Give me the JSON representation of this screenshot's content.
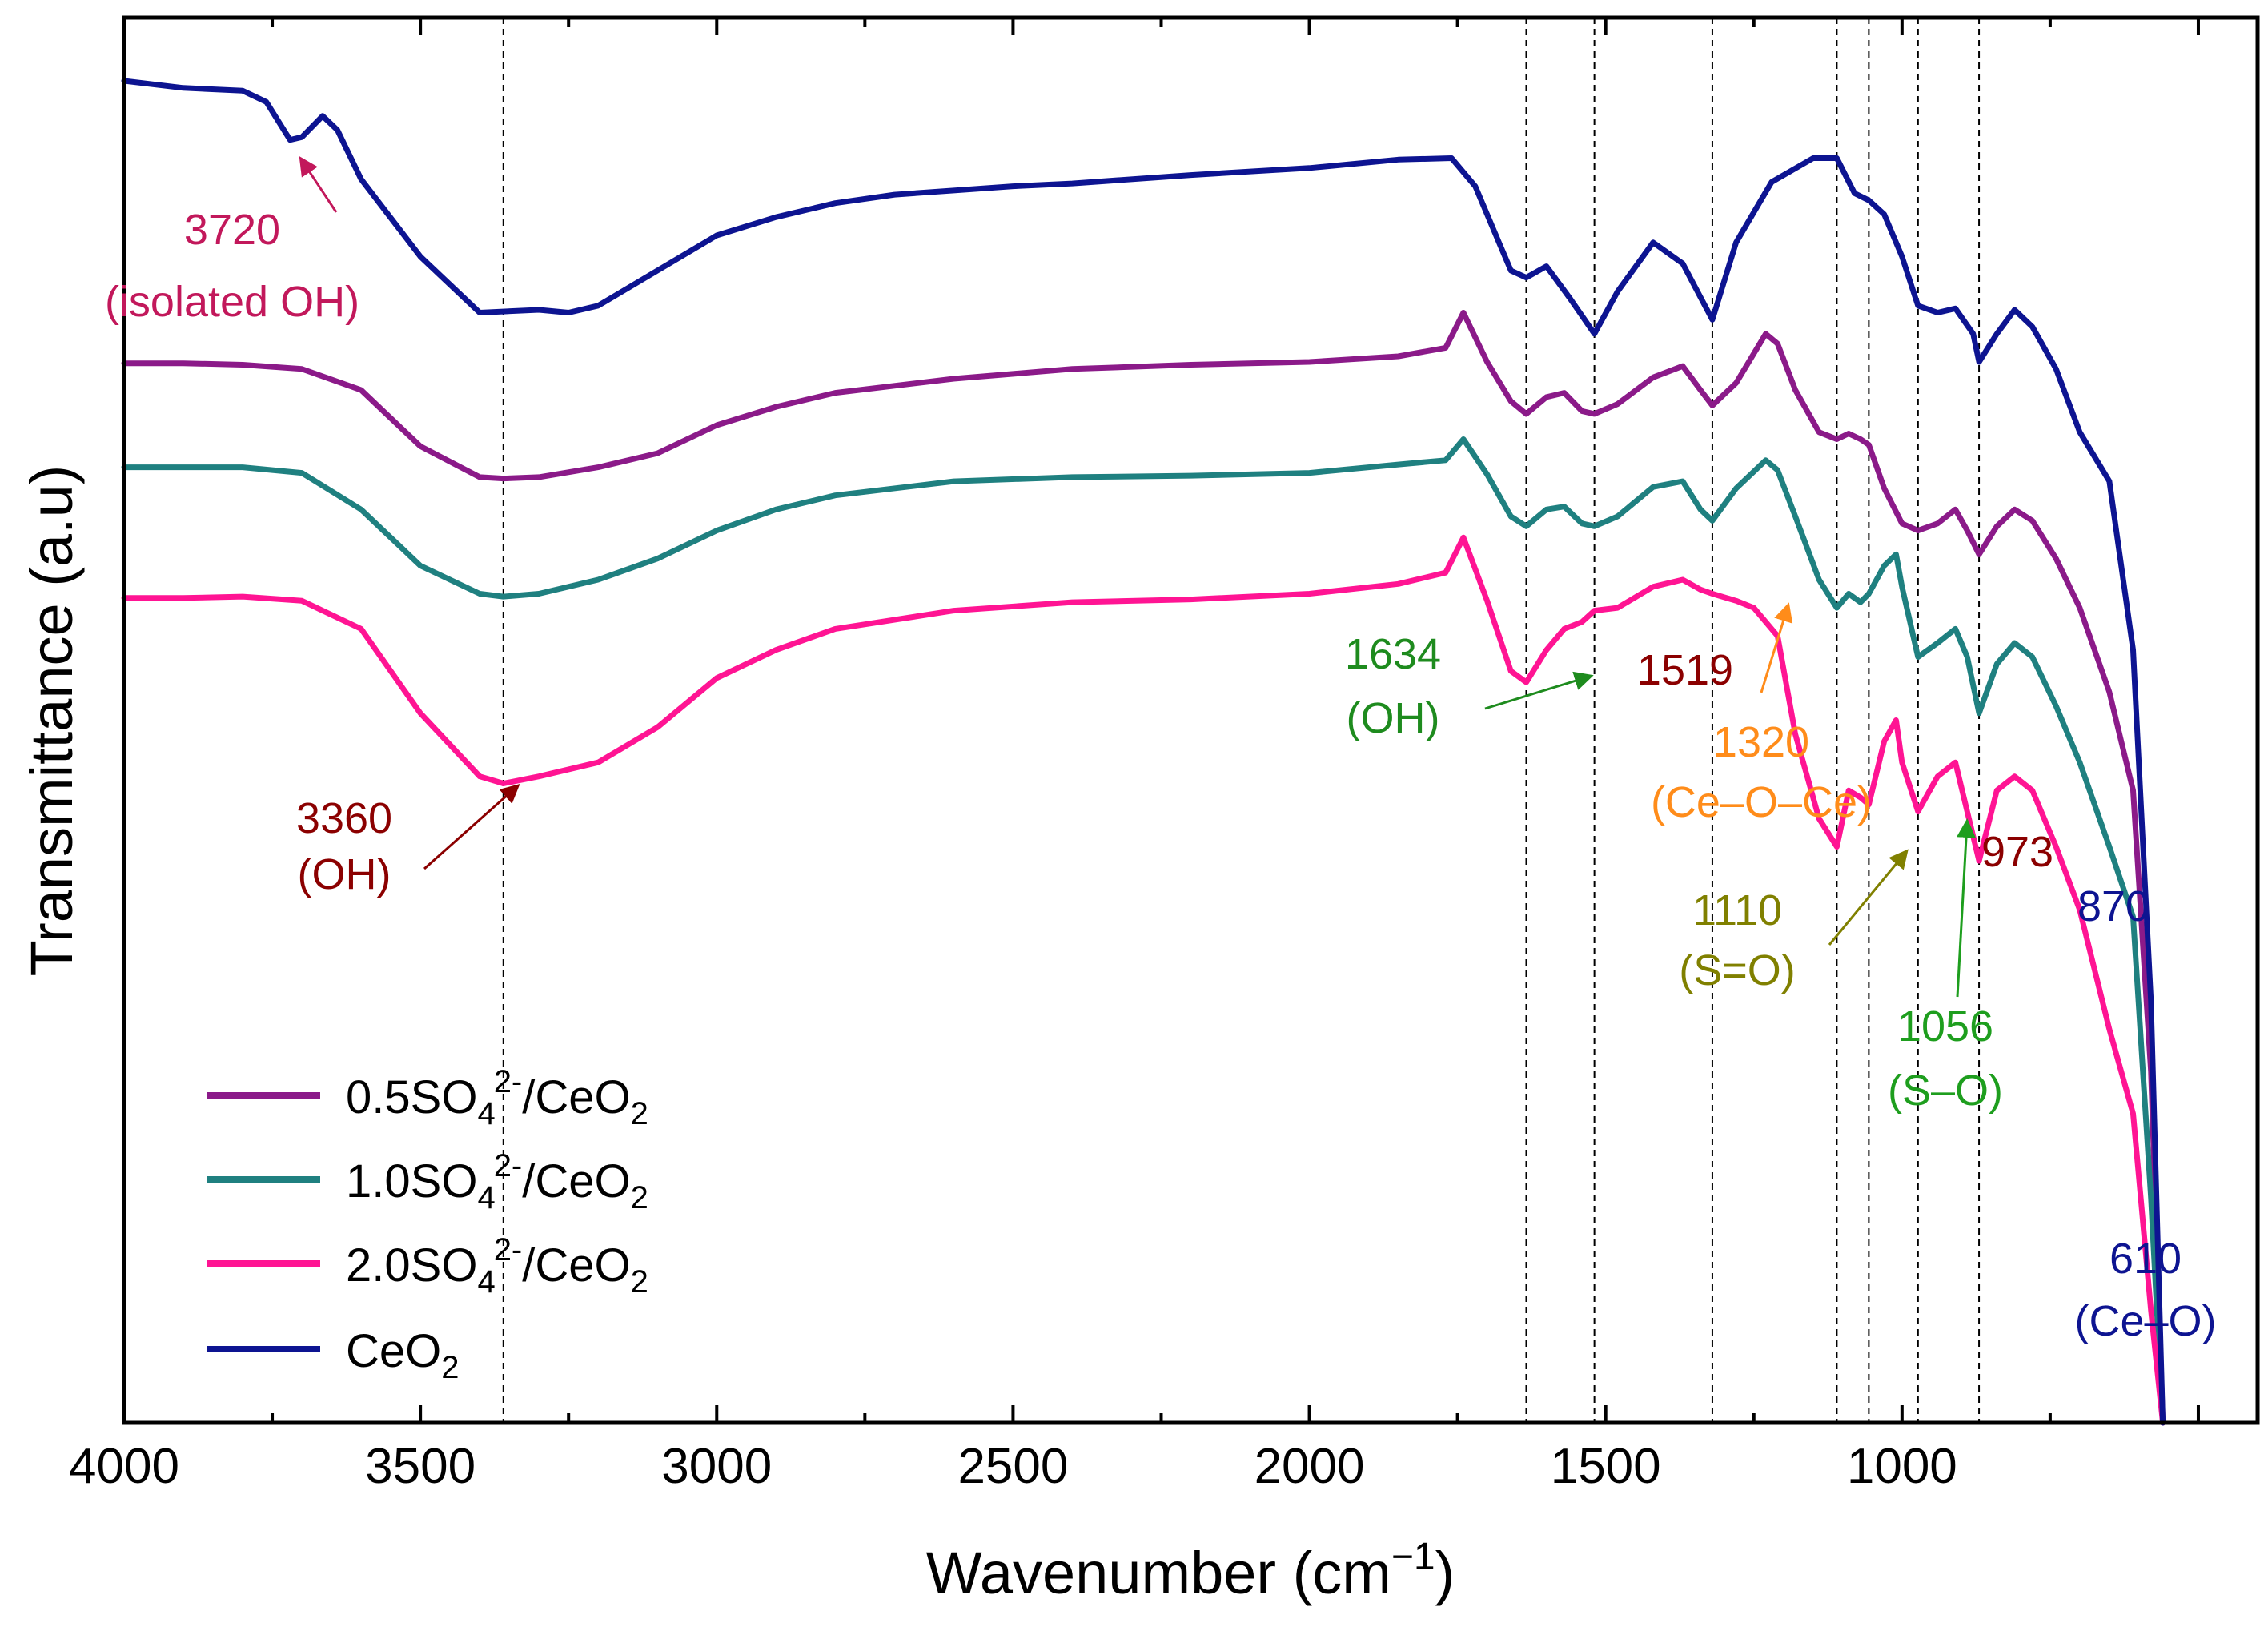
{
  "chart_data": {
    "type": "line",
    "title": "",
    "xlabel": "Wavenumber (cm−1)",
    "xlabel_parts": {
      "main": "Wavenumber (cm",
      "sup": "−1",
      "close": ")"
    },
    "ylabel": "Transmittance (a.u)",
    "xlim": [
      4000,
      400
    ],
    "x_reversed": true,
    "ylim": [
      0,
      100
    ],
    "y_ticks_shown": false,
    "x_ticks": [
      4000,
      3500,
      3000,
      2500,
      2000,
      1500,
      1000
    ],
    "x_tick_labels": [
      "4000",
      "3500",
      "3000",
      "2500",
      "2000",
      "1500",
      "1000"
    ],
    "grid": false,
    "legend_position": "bottom-left",
    "series": [
      {
        "name": "0.5SO4 2-/CeO2",
        "label_parts": {
          "a": "0.5SO",
          "sub1": "4",
          "sup": "2-",
          "b": "/CeO",
          "sub2": "2"
        },
        "color": "#8B1A89",
        "points": [
          [
            4000,
            75.4
          ],
          [
            3900,
            75.4
          ],
          [
            3800,
            75.3
          ],
          [
            3700,
            75.0
          ],
          [
            3600,
            73.5
          ],
          [
            3500,
            69.5
          ],
          [
            3400,
            67.3
          ],
          [
            3360,
            67.2
          ],
          [
            3300,
            67.3
          ],
          [
            3200,
            68.0
          ],
          [
            3100,
            69.0
          ],
          [
            3000,
            71.0
          ],
          [
            2900,
            72.3
          ],
          [
            2800,
            73.3
          ],
          [
            2600,
            74.3
          ],
          [
            2400,
            75.0
          ],
          [
            2200,
            75.3
          ],
          [
            2000,
            75.5
          ],
          [
            1850,
            75.9
          ],
          [
            1770,
            76.5
          ],
          [
            1740,
            79.0
          ],
          [
            1700,
            75.5
          ],
          [
            1660,
            72.7
          ],
          [
            1634,
            71.8
          ],
          [
            1600,
            73.0
          ],
          [
            1570,
            73.3
          ],
          [
            1540,
            72.0
          ],
          [
            1519,
            71.8
          ],
          [
            1480,
            72.5
          ],
          [
            1420,
            74.4
          ],
          [
            1370,
            75.2
          ],
          [
            1340,
            73.5
          ],
          [
            1320,
            72.4
          ],
          [
            1280,
            74.0
          ],
          [
            1230,
            77.5
          ],
          [
            1210,
            76.8
          ],
          [
            1180,
            73.5
          ],
          [
            1140,
            70.5
          ],
          [
            1110,
            70.0
          ],
          [
            1090,
            70.4
          ],
          [
            1070,
            70.0
          ],
          [
            1056,
            69.6
          ],
          [
            1030,
            66.5
          ],
          [
            1000,
            64.0
          ],
          [
            973,
            63.5
          ],
          [
            940,
            64.0
          ],
          [
            910,
            65.0
          ],
          [
            890,
            63.5
          ],
          [
            870,
            61.8
          ],
          [
            840,
            63.8
          ],
          [
            810,
            65.0
          ],
          [
            780,
            64.2
          ],
          [
            740,
            61.5
          ],
          [
            700,
            58.0
          ],
          [
            650,
            52.0
          ],
          [
            610,
            45.0
          ],
          [
            580,
            25.0
          ],
          [
            560,
            0.0
          ]
        ]
      },
      {
        "name": "1.0SO4 2-/CeO2",
        "label_parts": {
          "a": "1.0SO",
          "sub1": "4",
          "sup": "2-",
          "b": "/CeO",
          "sub2": "2"
        },
        "color": "#1F8080",
        "points": [
          [
            4000,
            68.0
          ],
          [
            3900,
            68.0
          ],
          [
            3800,
            68.0
          ],
          [
            3700,
            67.6
          ],
          [
            3600,
            65.0
          ],
          [
            3500,
            61.0
          ],
          [
            3400,
            59.0
          ],
          [
            3360,
            58.8
          ],
          [
            3300,
            59.0
          ],
          [
            3200,
            60.0
          ],
          [
            3100,
            61.5
          ],
          [
            3000,
            63.5
          ],
          [
            2900,
            65.0
          ],
          [
            2800,
            66.0
          ],
          [
            2600,
            67.0
          ],
          [
            2400,
            67.3
          ],
          [
            2200,
            67.4
          ],
          [
            2000,
            67.6
          ],
          [
            1850,
            68.2
          ],
          [
            1770,
            68.5
          ],
          [
            1740,
            70.0
          ],
          [
            1700,
            67.5
          ],
          [
            1660,
            64.5
          ],
          [
            1634,
            63.8
          ],
          [
            1600,
            65.0
          ],
          [
            1570,
            65.2
          ],
          [
            1540,
            64.0
          ],
          [
            1519,
            63.8
          ],
          [
            1480,
            64.5
          ],
          [
            1420,
            66.6
          ],
          [
            1370,
            67.0
          ],
          [
            1340,
            65.0
          ],
          [
            1320,
            64.2
          ],
          [
            1280,
            66.5
          ],
          [
            1230,
            68.5
          ],
          [
            1210,
            67.8
          ],
          [
            1180,
            64.5
          ],
          [
            1140,
            60.0
          ],
          [
            1110,
            58.0
          ],
          [
            1090,
            59.0
          ],
          [
            1070,
            58.4
          ],
          [
            1056,
            59.0
          ],
          [
            1030,
            61.0
          ],
          [
            1010,
            61.8
          ],
          [
            1000,
            59.5
          ],
          [
            973,
            54.5
          ],
          [
            940,
            55.5
          ],
          [
            910,
            56.5
          ],
          [
            890,
            54.5
          ],
          [
            870,
            50.5
          ],
          [
            840,
            54.0
          ],
          [
            810,
            55.5
          ],
          [
            780,
            54.5
          ],
          [
            740,
            51.0
          ],
          [
            700,
            47.0
          ],
          [
            650,
            41.0
          ],
          [
            610,
            36.0
          ],
          [
            580,
            16.0
          ],
          [
            560,
            0.0
          ]
        ]
      },
      {
        "name": "2.0SO4 2-/CeO2",
        "label_parts": {
          "a": "2.0SO",
          "sub1": "4",
          "sup": "2-",
          "b": "/CeO",
          "sub2": "2"
        },
        "color": "#FF1493",
        "points": [
          [
            4000,
            58.7
          ],
          [
            3900,
            58.7
          ],
          [
            3800,
            58.8
          ],
          [
            3700,
            58.5
          ],
          [
            3600,
            56.5
          ],
          [
            3500,
            50.5
          ],
          [
            3400,
            46.0
          ],
          [
            3360,
            45.5
          ],
          [
            3300,
            46.0
          ],
          [
            3200,
            47.0
          ],
          [
            3100,
            49.5
          ],
          [
            3000,
            53.0
          ],
          [
            2900,
            55.0
          ],
          [
            2800,
            56.5
          ],
          [
            2600,
            57.8
          ],
          [
            2400,
            58.4
          ],
          [
            2200,
            58.6
          ],
          [
            2000,
            59.0
          ],
          [
            1850,
            59.7
          ],
          [
            1770,
            60.5
          ],
          [
            1740,
            63.0
          ],
          [
            1700,
            58.5
          ],
          [
            1660,
            53.5
          ],
          [
            1634,
            52.7
          ],
          [
            1600,
            55.0
          ],
          [
            1570,
            56.5
          ],
          [
            1540,
            57.0
          ],
          [
            1519,
            57.8
          ],
          [
            1480,
            58.0
          ],
          [
            1420,
            59.5
          ],
          [
            1370,
            60.0
          ],
          [
            1340,
            59.3
          ],
          [
            1320,
            59.0
          ],
          [
            1280,
            58.5
          ],
          [
            1250,
            58.0
          ],
          [
            1210,
            56.0
          ],
          [
            1180,
            49.0
          ],
          [
            1140,
            43.0
          ],
          [
            1110,
            41.0
          ],
          [
            1090,
            45.0
          ],
          [
            1070,
            44.5
          ],
          [
            1056,
            44.0
          ],
          [
            1030,
            48.5
          ],
          [
            1010,
            50.0
          ],
          [
            1000,
            47.0
          ],
          [
            973,
            43.5
          ],
          [
            940,
            46.0
          ],
          [
            910,
            47.0
          ],
          [
            890,
            43.5
          ],
          [
            870,
            40.0
          ],
          [
            840,
            45.0
          ],
          [
            810,
            46.0
          ],
          [
            780,
            45.0
          ],
          [
            740,
            41.0
          ],
          [
            700,
            36.5
          ],
          [
            650,
            28.0
          ],
          [
            610,
            22.0
          ],
          [
            580,
            8.0
          ],
          [
            560,
            0.0
          ]
        ]
      },
      {
        "name": "CeO2",
        "label_parts": {
          "a": "CeO",
          "sub": "2"
        },
        "color": "#0D1491",
        "points": [
          [
            4000,
            95.5
          ],
          [
            3900,
            95.0
          ],
          [
            3800,
            94.8
          ],
          [
            3760,
            94.0
          ],
          [
            3720,
            91.3
          ],
          [
            3700,
            91.5
          ],
          [
            3665,
            93.0
          ],
          [
            3640,
            92.0
          ],
          [
            3600,
            88.5
          ],
          [
            3500,
            83.0
          ],
          [
            3400,
            79.0
          ],
          [
            3300,
            79.2
          ],
          [
            3250,
            79.0
          ],
          [
            3200,
            79.5
          ],
          [
            3100,
            82.0
          ],
          [
            3000,
            84.5
          ],
          [
            2900,
            85.8
          ],
          [
            2800,
            86.8
          ],
          [
            2700,
            87.4
          ],
          [
            2600,
            87.7
          ],
          [
            2500,
            88.0
          ],
          [
            2400,
            88.2
          ],
          [
            2200,
            88.8
          ],
          [
            2000,
            89.3
          ],
          [
            1850,
            89.9
          ],
          [
            1760,
            90.0
          ],
          [
            1720,
            88.0
          ],
          [
            1680,
            84.0
          ],
          [
            1660,
            82.0
          ],
          [
            1634,
            81.5
          ],
          [
            1600,
            82.3
          ],
          [
            1560,
            80.0
          ],
          [
            1519,
            77.5
          ],
          [
            1480,
            80.5
          ],
          [
            1420,
            84.0
          ],
          [
            1370,
            82.5
          ],
          [
            1320,
            78.5
          ],
          [
            1280,
            84.0
          ],
          [
            1220,
            88.3
          ],
          [
            1150,
            90.0
          ],
          [
            1110,
            90.0
          ],
          [
            1080,
            87.5
          ],
          [
            1056,
            87.0
          ],
          [
            1030,
            86.0
          ],
          [
            1000,
            83.0
          ],
          [
            973,
            79.5
          ],
          [
            940,
            79.0
          ],
          [
            910,
            79.3
          ],
          [
            880,
            77.5
          ],
          [
            870,
            75.5
          ],
          [
            840,
            77.5
          ],
          [
            810,
            79.2
          ],
          [
            780,
            78.0
          ],
          [
            740,
            75.0
          ],
          [
            700,
            70.5
          ],
          [
            650,
            67.0
          ],
          [
            610,
            55.0
          ],
          [
            580,
            30.0
          ],
          [
            560,
            0.0
          ]
        ]
      }
    ],
    "vlines": [
      3360,
      1634,
      1519,
      1320,
      1110,
      1056,
      973,
      870
    ],
    "annotations": [
      {
        "lines": [
          "3720",
          "(isolated OH)"
        ],
        "color": "#C2185B",
        "arrow": true
      },
      {
        "lines": [
          "3360",
          "(OH)"
        ],
        "color": "#8B0000",
        "arrow": true
      },
      {
        "lines": [
          "1634",
          "(OH)"
        ],
        "color": "#1E8B1E",
        "arrow": true
      },
      {
        "lines": [
          "1519"
        ],
        "color": "#8B0000",
        "arrow": false
      },
      {
        "lines": [
          "1320",
          "(Ce–O–Ce)"
        ],
        "color": "#FF8C1A",
        "arrow": true
      },
      {
        "lines": [
          "1110",
          "(S=O)"
        ],
        "color": "#808000",
        "arrow": true
      },
      {
        "lines": [
          "1056",
          "(S–O)"
        ],
        "color": "#1E9E1E",
        "arrow": true
      },
      {
        "lines": [
          "973"
        ],
        "color": "#8B0000",
        "arrow": false
      },
      {
        "lines": [
          "870"
        ],
        "color": "#0D1491",
        "arrow": false
      },
      {
        "lines": [
          "610",
          "(Ce–O)"
        ],
        "color": "#0D1491",
        "arrow": false
      }
    ]
  }
}
